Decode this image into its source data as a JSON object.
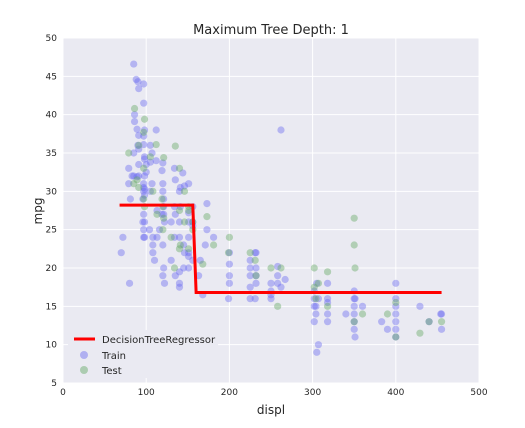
{
  "chart_data": {
    "type": "scatter",
    "title": "Maximum Tree Depth: 1",
    "xlabel": "displ",
    "ylabel": "mpg",
    "xlim": [
      0,
      500
    ],
    "ylim": [
      5,
      50
    ],
    "xticks": [
      "0",
      "100",
      "200",
      "300",
      "400",
      "500"
    ],
    "yticks": [
      "5",
      "10",
      "15",
      "20",
      "25",
      "30",
      "35",
      "40",
      "45",
      "50"
    ],
    "grid": true,
    "legend_position": "bottom-left",
    "series": [
      {
        "name": "DecisionTreeRegressor",
        "kind": "step-line",
        "color": "#ff0000",
        "points": [
          [
            68,
            28.2
          ],
          [
            156,
            28.2
          ],
          [
            160,
            16.8
          ],
          [
            455,
            16.8
          ]
        ]
      },
      {
        "name": "Train",
        "kind": "scatter",
        "color": "#6a6af0",
        "points": [
          [
            85,
            46.6
          ],
          [
            88,
            44.6
          ],
          [
            90,
            44.3
          ],
          [
            91,
            43.4
          ],
          [
            97,
            44.0
          ],
          [
            97,
            41.5
          ],
          [
            89,
            38.1
          ],
          [
            86,
            39.1
          ],
          [
            91,
            37.3
          ],
          [
            97,
            36.1
          ],
          [
            98,
            38.0
          ],
          [
            105,
            36.0
          ],
          [
            112,
            38.0
          ],
          [
            90,
            36.0
          ],
          [
            98,
            34.5
          ],
          [
            79,
            33.0
          ],
          [
            85,
            32.0
          ],
          [
            91,
            32.0
          ],
          [
            97,
            31.0
          ],
          [
            97,
            30.0
          ],
          [
            105,
            30.0
          ],
          [
            79,
            31.0
          ],
          [
            98,
            34.2
          ],
          [
            112,
            34.0
          ],
          [
            100,
            33.5
          ],
          [
            107,
            35.0
          ],
          [
            120,
            33.7
          ],
          [
            119,
            32.7
          ],
          [
            120,
            31.0
          ],
          [
            121,
            29.0
          ],
          [
            121,
            28.0
          ],
          [
            134,
            33.0
          ],
          [
            135,
            31.5
          ],
          [
            140,
            30.0
          ],
          [
            144,
            32.4
          ],
          [
            151,
            31.0
          ],
          [
            141,
            28.0
          ],
          [
            146,
            30.7
          ],
          [
            156,
            28.0
          ],
          [
            151,
            27.2
          ],
          [
            122,
            26.0
          ],
          [
            116,
            25.0
          ],
          [
            97,
            25.0
          ],
          [
            98,
            26.0
          ],
          [
            104,
            25.0
          ],
          [
            108,
            24.0
          ],
          [
            113,
            24.0
          ],
          [
            120,
            23.0
          ],
          [
            97,
            27.0
          ],
          [
            96,
            29.0
          ],
          [
            121,
            27.0
          ],
          [
            140,
            26.0
          ],
          [
            151,
            26.0
          ],
          [
            134,
            24.0
          ],
          [
            140,
            24.0
          ],
          [
            145,
            23.0
          ],
          [
            151,
            22.0
          ],
          [
            156,
            21.0
          ],
          [
            163,
            19.0
          ],
          [
            151,
            20.0
          ],
          [
            135,
            19.0
          ],
          [
            140,
            18.0
          ],
          [
            72,
            24.0
          ],
          [
            70,
            22.0
          ],
          [
            80,
            18.0
          ],
          [
            108,
            23.0
          ],
          [
            98,
            24.0
          ],
          [
            140,
            17.5
          ],
          [
            122,
            18.0
          ],
          [
            130,
            21.0
          ],
          [
            151,
            21.5
          ],
          [
            168,
            16.5
          ],
          [
            173,
            25.0
          ],
          [
            181,
            24.0
          ],
          [
            200,
            22.0
          ],
          [
            200,
            20.5
          ],
          [
            225,
            20.0
          ],
          [
            225,
            19.0
          ],
          [
            232,
            19.0
          ],
          [
            225,
            17.5
          ],
          [
            231,
            16.0
          ],
          [
            250,
            18.0
          ],
          [
            250,
            17.0
          ],
          [
            250,
            16.0
          ],
          [
            258,
            18.0
          ],
          [
            258,
            19.0
          ],
          [
            262,
            38.0
          ],
          [
            232,
            22.0
          ],
          [
            225,
            21.0
          ],
          [
            200,
            18.0
          ],
          [
            199,
            16.0
          ],
          [
            262,
            17.5
          ],
          [
            267,
            18.5
          ],
          [
            302,
            17.0
          ],
          [
            302,
            15.0
          ],
          [
            304,
            15.0
          ],
          [
            305,
            18.0
          ],
          [
            318,
            14.0
          ],
          [
            318,
            15.5
          ],
          [
            318,
            13.0
          ],
          [
            302,
            13.0
          ],
          [
            307,
            10.0
          ],
          [
            305,
            9.0
          ],
          [
            304,
            14.0
          ],
          [
            318,
            16.0
          ],
          [
            340,
            14.0
          ],
          [
            350,
            15.0
          ],
          [
            350,
            14.0
          ],
          [
            350,
            13.0
          ],
          [
            350,
            16.0
          ],
          [
            350,
            17.0
          ],
          [
            350,
            12.0
          ],
          [
            351,
            11.0
          ],
          [
            360,
            15.0
          ],
          [
            383,
            13.0
          ],
          [
            400,
            16.0
          ],
          [
            400,
            15.0
          ],
          [
            400,
            14.0
          ],
          [
            400,
            13.0
          ],
          [
            400,
            12.0
          ],
          [
            400,
            11.0
          ],
          [
            429,
            15.0
          ],
          [
            440,
            13.0
          ],
          [
            454,
            14.0
          ],
          [
            455,
            12.0
          ],
          [
            455,
            14.0
          ],
          [
            390,
            12.0
          ],
          [
            307,
            16.0
          ],
          [
            250,
            16.5
          ],
          [
            232,
            20.0
          ],
          [
            258,
            20.2
          ],
          [
            231,
            22.0
          ],
          [
            173,
            28.4
          ],
          [
            171,
            23.0
          ],
          [
            200,
            19.0
          ],
          [
            156,
            25.5
          ],
          [
            151,
            24.0
          ],
          [
            130,
            26.0
          ],
          [
            135,
            27.0
          ],
          [
            97,
            30.5
          ],
          [
            98,
            32.0
          ],
          [
            91,
            33.5
          ],
          [
            113,
            27.5
          ],
          [
            98,
            29.5
          ],
          [
            120,
            30.0
          ],
          [
            119,
            27.0
          ],
          [
            107,
            31.0
          ],
          [
            89,
            31.9
          ],
          [
            81,
            29.0
          ],
          [
            83,
            32.0
          ],
          [
            86,
            40.0
          ],
          [
            97,
            37.2
          ],
          [
            96,
            26.0
          ],
          [
            97,
            24.0
          ],
          [
            108,
            22.0
          ],
          [
            110,
            21.0
          ],
          [
            120,
            19.0
          ],
          [
            121,
            20.0
          ],
          [
            140,
            19.5
          ],
          [
            146,
            22.0
          ],
          [
            156,
            26.0
          ],
          [
            134,
            28.0
          ],
          [
            141,
            30.5
          ],
          [
            85,
            35.0
          ],
          [
            91,
            35.5
          ],
          [
            98,
            30.3
          ],
          [
            100,
            32.5
          ],
          [
            105,
            33.8
          ],
          [
            165,
            21.0
          ],
          [
            145,
            20.0
          ],
          [
            302,
            16.0
          ],
          [
            225,
            16.0
          ],
          [
            232,
            18.0
          ],
          [
            318,
            18.0
          ],
          [
            351,
            16.0
          ],
          [
            400,
            18.0
          ]
        ]
      },
      {
        "name": "Test",
        "kind": "scatter",
        "color": "#62a862",
        "points": [
          [
            86,
            40.8
          ],
          [
            91,
            36.0
          ],
          [
            97,
            37.7
          ],
          [
            98,
            39.4
          ],
          [
            105,
            34.5
          ],
          [
            112,
            36.1
          ],
          [
            121,
            34.4
          ],
          [
            135,
            35.9
          ],
          [
            140,
            33.0
          ],
          [
            146,
            30.0
          ],
          [
            151,
            27.5
          ],
          [
            156,
            26.0
          ],
          [
            173,
            26.7
          ],
          [
            181,
            23.0
          ],
          [
            200,
            24.0
          ],
          [
            199,
            22.0
          ],
          [
            225,
            22.0
          ],
          [
            231,
            21.0
          ],
          [
            250,
            20.0
          ],
          [
            262,
            20.0
          ],
          [
            302,
            20.0
          ],
          [
            307,
            18.0
          ],
          [
            318,
            19.5
          ],
          [
            318,
            15.0
          ],
          [
            350,
            26.5
          ],
          [
            350,
            23.0
          ],
          [
            351,
            20.0
          ],
          [
            350,
            13.0
          ],
          [
            400,
            11.0
          ],
          [
            440,
            13.0
          ],
          [
            455,
            13.0
          ],
          [
            97,
            33.0
          ],
          [
            89,
            31.5
          ],
          [
            79,
            35.0
          ],
          [
            119,
            29.0
          ],
          [
            120,
            25.0
          ],
          [
            121,
            26.5
          ],
          [
            130,
            24.0
          ],
          [
            140,
            22.5
          ],
          [
            151,
            22.5
          ],
          [
            98,
            28.0
          ],
          [
            108,
            30.0
          ],
          [
            113,
            27.0
          ],
          [
            120,
            28.0
          ],
          [
            134,
            20.0
          ],
          [
            151,
            28.0
          ],
          [
            156,
            25.0
          ],
          [
            168,
            20.5
          ],
          [
            85,
            31.0
          ],
          [
            97,
            29.0
          ],
          [
            91,
            30.5
          ],
          [
            140,
            27.5
          ],
          [
            141,
            23.0
          ],
          [
            146,
            26.0
          ],
          [
            304,
            16.0
          ],
          [
            302,
            17.5
          ],
          [
            232,
            19.0
          ],
          [
            258,
            15.0
          ],
          [
            400,
            15.5
          ],
          [
            429,
            11.5
          ],
          [
            390,
            14.0
          ],
          [
            360,
            14.0
          ]
        ]
      }
    ]
  }
}
